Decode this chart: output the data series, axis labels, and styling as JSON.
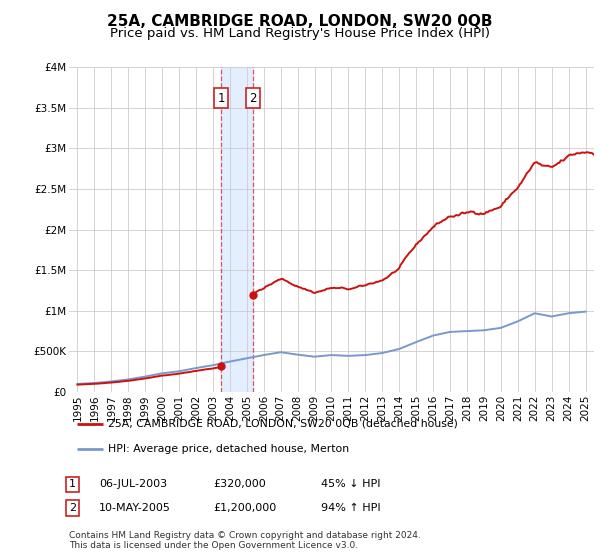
{
  "title": "25A, CAMBRIDGE ROAD, LONDON, SW20 0QB",
  "subtitle": "Price paid vs. HM Land Registry's House Price Index (HPI)",
  "ylim": [
    0,
    4000000
  ],
  "yticks": [
    0,
    500000,
    1000000,
    1500000,
    2000000,
    2500000,
    3000000,
    3500000,
    4000000
  ],
  "ytick_labels": [
    "£0",
    "£500K",
    "£1M",
    "£1.5M",
    "£2M",
    "£2.5M",
    "£3M",
    "£3.5M",
    "£4M"
  ],
  "xlim_start": 1994.5,
  "xlim_end": 2025.5,
  "xtick_years": [
    1995,
    1996,
    1997,
    1998,
    1999,
    2000,
    2001,
    2002,
    2003,
    2004,
    2005,
    2006,
    2007,
    2008,
    2009,
    2010,
    2011,
    2012,
    2013,
    2014,
    2015,
    2016,
    2017,
    2018,
    2019,
    2020,
    2021,
    2022,
    2023,
    2024,
    2025
  ],
  "hpi_line_color": "#7799cc",
  "price_line_color": "#cc1111",
  "sale1_year": 2003.5,
  "sale1_price": 320000,
  "sale2_year": 2005.36,
  "sale2_price": 1200000,
  "legend_line1": "25A, CAMBRIDGE ROAD, LONDON, SW20 0QB (detached house)",
  "legend_line2": "HPI: Average price, detached house, Merton",
  "bg_color": "#ffffff",
  "grid_color": "#cccccc",
  "title_fontsize": 11,
  "subtitle_fontsize": 9.5,
  "tick_fontsize": 7.5
}
